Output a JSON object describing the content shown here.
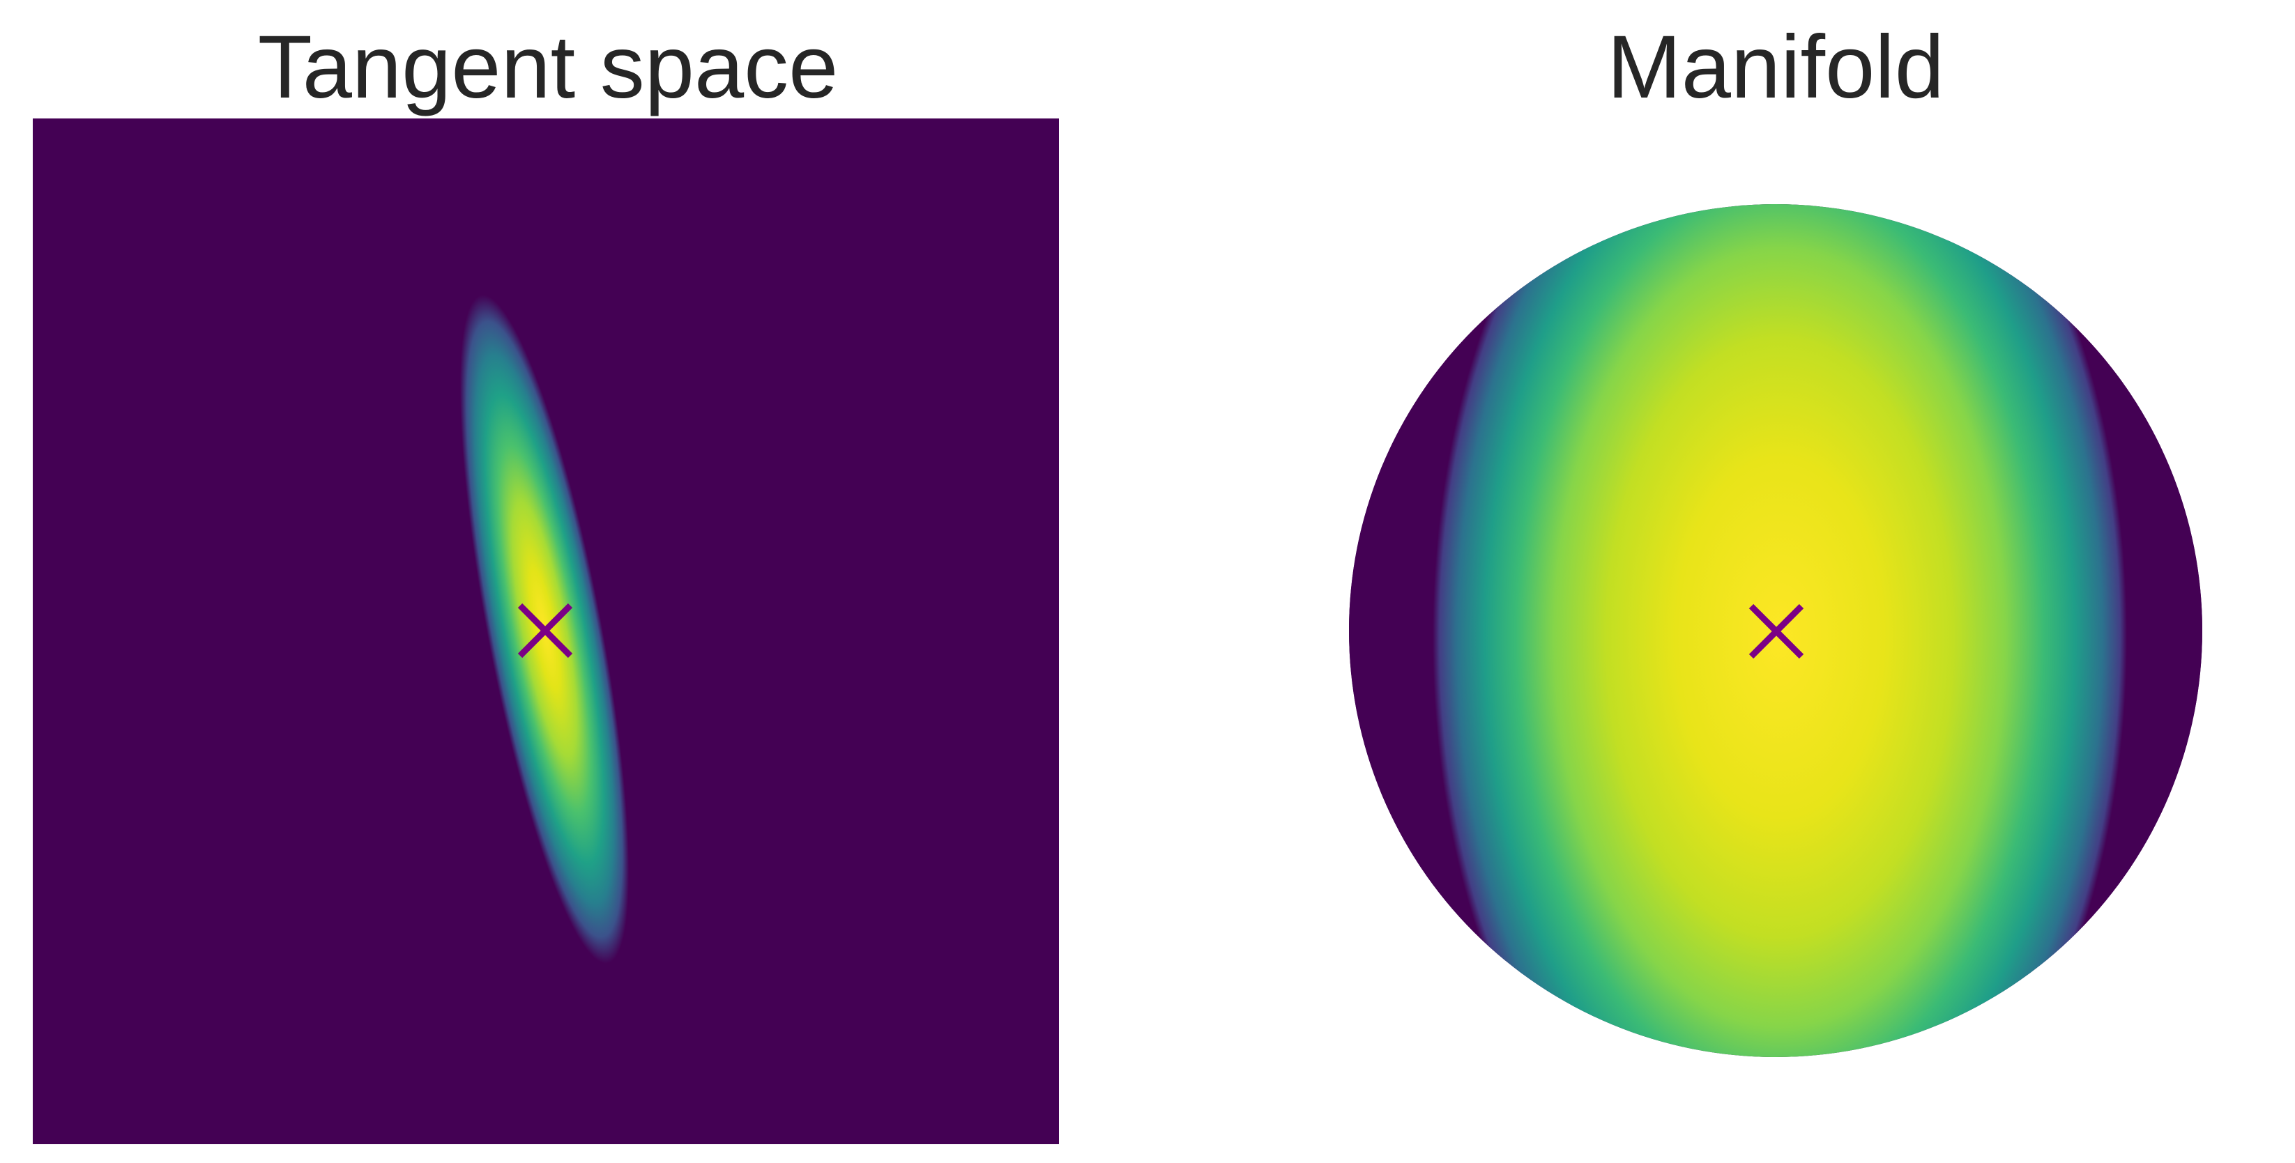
{
  "chart_data": [
    {
      "type": "heatmap",
      "title": "Tangent space",
      "colormap": "viridis",
      "background_color": "#440154",
      "marker": {
        "symbol": "x",
        "color": "#7b0086"
      },
      "grid": false,
      "axes_visible": false
    },
    {
      "type": "heatmap",
      "title": "Manifold",
      "colormap": "viridis",
      "background_color": "#440154",
      "marker": {
        "symbol": "x",
        "color": "#7b0086"
      },
      "grid": false,
      "axes_visible": false
    }
  ]
}
